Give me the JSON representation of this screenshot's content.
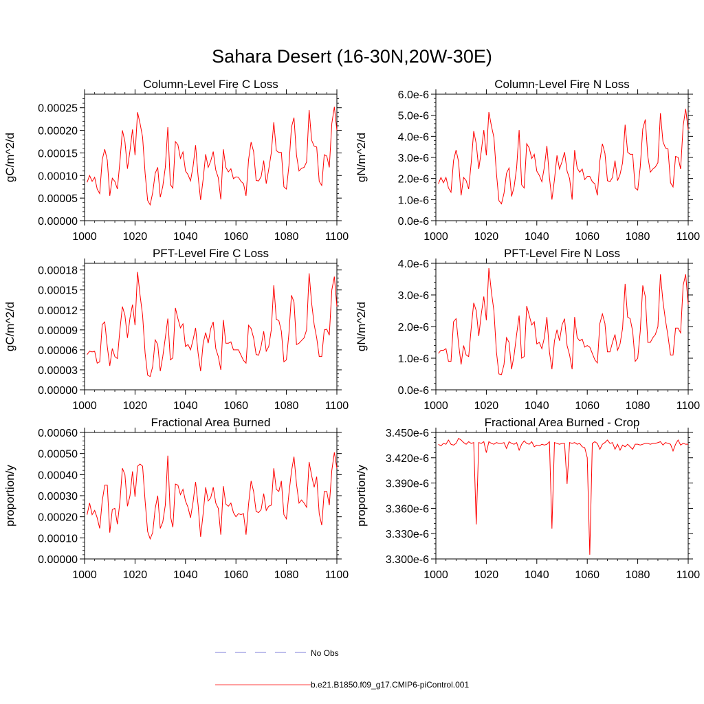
{
  "title": "Sahara Desert (16-30N,20W-30E)",
  "legend": [
    {
      "label": "No Obs",
      "color": "#5555cc",
      "style": "dashed"
    },
    {
      "label": "b.e21.B1850.f09_g17.CMIP6-piControl.001",
      "color": "#ff0000",
      "style": "solid"
    }
  ],
  "colors": {
    "series": "#ff0000",
    "axis": "#000000",
    "obs": "#5555cc"
  },
  "chart_data": [
    {
      "type": "line",
      "title": "Column-Level Fire C Loss",
      "ylabel": "gC/m^2/d",
      "xlim": [
        1000,
        1100
      ],
      "ylim": [
        0,
        0.00028
      ],
      "xticks": [
        1000,
        1020,
        1040,
        1060,
        1080,
        1100
      ],
      "yticks": [
        0,
        5e-05,
        0.0001,
        0.00015,
        0.0002,
        0.00025
      ],
      "ytick_labels": [
        "0.00000",
        "0.00005",
        "0.00010",
        "0.00015",
        "0.00020",
        "0.00025"
      ],
      "series": [
        {
          "name": "b.e21.B1850.f09_g17.CMIP6-piControl.001",
          "x_start": 1001,
          "values": [
            8.5e-05,
            0.0001,
            8.7e-05,
            9.6e-05,
            7e-05,
            6e-05,
            0.000135,
            0.000158,
            0.000134,
            5.5e-05,
            9.4e-05,
            8.7e-05,
            7e-05,
            0.00013,
            0.0002,
            0.000175,
            0.000115,
            0.000155,
            0.000202,
            0.000145,
            0.00024,
            0.000215,
            0.000185,
            0.000105,
            4.5e-05,
            3.5e-05,
            6.2e-05,
            0.000105,
            0.000118,
            5.2e-05,
            7.6e-05,
            0.000118,
            0.000207,
            8e-05,
            7.2e-05,
            0.000175,
            0.000168,
            0.000138,
            0.000152,
            0.00011,
            0.000102,
            8.8e-05,
            0.00012,
            0.000167,
            9.8e-05,
            4.6e-05,
            9.2e-05,
            0.000147,
            0.000118,
            0.000132,
            0.000153,
            0.000112,
            9.5e-05,
            4.7e-05,
            0.000158,
            0.000118,
            0.000108,
            0.000115,
            9.3e-05,
            9.7e-05,
            9.6e-05,
            8.7e-05,
            8.2e-05,
            5.5e-05,
            0.000135,
            0.000174,
            0.000153,
            8.9e-05,
            8.8e-05,
            9.8e-05,
            0.000133,
            8.2e-05,
            0.000114,
            0.00015,
            0.000218,
            0.000155,
            0.000151,
            0.000151,
            7.5e-05,
            7e-05,
            0.000122,
            0.000207,
            0.000228,
            0.000145,
            0.00011,
            0.000116,
            0.000118,
            0.00013,
            0.000245,
            0.000178,
            0.000165,
            0.000163,
            8.7e-05,
            7.8e-05,
            0.000146,
            0.000143,
            0.000118,
            0.000215,
            0.000252,
            0.0002
          ]
        }
      ]
    },
    {
      "type": "line",
      "title": "Column-Level Fire N Loss",
      "ylabel": "gN/m^2/d",
      "xlim": [
        1000,
        1100
      ],
      "ylim": [
        0,
        6e-06
      ],
      "xticks": [
        1000,
        1020,
        1040,
        1060,
        1080,
        1100
      ],
      "yticks": [
        0,
        1e-06,
        2e-06,
        3e-06,
        4e-06,
        5e-06,
        6e-06
      ],
      "ytick_labels": [
        "0.0e-6",
        "1.0e-6",
        "2.0e-6",
        "3.0e-6",
        "4.0e-6",
        "5.0e-6",
        "6.0e-6"
      ],
      "series": [
        {
          "name": "b.e21.B1850.f09_g17.CMIP6-piControl.001",
          "x_start": 1001,
          "values": [
            1.75e-06,
            2.05e-06,
            1.8e-06,
            2.05e-06,
            1.55e-06,
            1.35e-06,
            2.85e-06,
            3.35e-06,
            2.8e-06,
            1.2e-06,
            2.05e-06,
            1.9e-06,
            1.5e-06,
            2.75e-06,
            4.25e-06,
            3.65e-06,
            2.45e-06,
            3.3e-06,
            4.3e-06,
            3.1e-06,
            5.15e-06,
            4.5e-06,
            3.95e-06,
            2.25e-06,
            9.5e-07,
            8e-07,
            1.3e-06,
            2.25e-06,
            2.5e-06,
            1.15e-06,
            1.6e-06,
            2.5e-06,
            4.3e-06,
            1.7e-06,
            1.55e-06,
            3.65e-06,
            3.45e-06,
            2.95e-06,
            3.15e-06,
            2.35e-06,
            2.15e-06,
            1.85e-06,
            2.55e-06,
            3.55e-06,
            2.05e-06,
            1e-06,
            1.95e-06,
            3.1e-06,
            2.45e-06,
            2.8e-06,
            3.25e-06,
            2.35e-06,
            2e-06,
            1e-06,
            3.35e-06,
            2.5e-06,
            2.3e-06,
            2.45e-06,
            1.95e-06,
            2.1e-06,
            2.1e-06,
            1.85e-06,
            1.75e-06,
            1.2e-06,
            2.85e-06,
            3.65e-06,
            3.2e-06,
            1.9e-06,
            1.85e-06,
            2.05e-06,
            2.85e-06,
            1.9e-06,
            2.2e-06,
            2.75e-06,
            4.55e-06,
            3.25e-06,
            3.15e-06,
            3.15e-06,
            1.55e-06,
            1.45e-06,
            2.55e-06,
            4.35e-06,
            4.8e-06,
            3.05e-06,
            2.3e-06,
            2.45e-06,
            2.55e-06,
            2.75e-06,
            5.1e-06,
            3.75e-06,
            3.45e-06,
            3.4e-06,
            1.8e-06,
            1.6e-06,
            3.05e-06,
            3e-06,
            2.45e-06,
            4.5e-06,
            5.3e-06,
            4.3e-06
          ]
        }
      ]
    },
    {
      "type": "line",
      "title": "PFT-Level Fire C Loss",
      "ylabel": "gC/m^2/d",
      "xlim": [
        1000,
        1100
      ],
      "ylim": [
        0,
        0.00019
      ],
      "xticks": [
        1000,
        1020,
        1040,
        1060,
        1080,
        1100
      ],
      "yticks": [
        0,
        3e-05,
        6e-05,
        9e-05,
        0.00012,
        0.00015,
        0.00018
      ],
      "ytick_labels": [
        "0.00000",
        "0.00003",
        "0.00006",
        "0.00009",
        "0.00012",
        "0.00015",
        "0.00018"
      ],
      "series": [
        {
          "name": "b.e21.B1850.f09_g17.CMIP6-piControl.001",
          "x_start": 1001,
          "values": [
            5.3e-05,
            5.8e-05,
            5.7e-05,
            5.8e-05,
            4e-05,
            4.2e-05,
            9.8e-05,
            0.000102,
            6.5e-05,
            3.6e-05,
            6.2e-05,
            5e-05,
            4.7e-05,
            9e-05,
            0.000125,
            0.000112,
            7.8e-05,
            0.000108,
            0.000128,
            9.7e-05,
            0.000177,
            0.000142,
            0.000112,
            5.5e-05,
            2.2e-05,
            2e-05,
            3.5e-05,
            7.5e-05,
            6.8e-05,
            2.8e-05,
            5e-05,
            7.8e-05,
            0.000107,
            4.5e-05,
            4.8e-05,
            0.000123,
            0.000107,
            9.3e-05,
            9.9e-05,
            6.5e-05,
            6.8e-05,
            6e-05,
            7.5e-05,
            9.3e-05,
            5.5e-05,
            2.8e-05,
            7e-05,
            8.6e-05,
            7e-05,
            9.2e-05,
            0.000102,
            6.2e-05,
            5e-05,
            3e-05,
            0.000105,
            7e-05,
            7e-05,
            7.2e-05,
            6e-05,
            6e-05,
            6e-05,
            5.2e-05,
            4.4e-05,
            4e-05,
            9.7e-05,
            9.2e-05,
            7.8e-05,
            5.3e-05,
            5.2e-05,
            6.6e-05,
            8.8e-05,
            5.8e-05,
            6.5e-05,
            9e-05,
            0.000157,
            0.000106,
            0.000104,
            8.8e-05,
            4.2e-05,
            4.5e-05,
            8.5e-05,
            0.000142,
            0.000132,
            6.8e-05,
            7e-05,
            7.4e-05,
            7.8e-05,
            9e-05,
            0.000175,
            0.00013,
            9.8e-05,
            7.8e-05,
            5e-05,
            5e-05,
            9e-05,
            9.1e-05,
            8.2e-05,
            0.00015,
            0.00017,
            0.000125
          ]
        }
      ]
    },
    {
      "type": "line",
      "title": "PFT-Level Fire N Loss",
      "ylabel": "gN/m^2/d",
      "xlim": [
        1000,
        1100
      ],
      "ylim": [
        0,
        4e-06
      ],
      "xticks": [
        1000,
        1020,
        1040,
        1060,
        1080,
        1100
      ],
      "yticks": [
        0,
        1e-06,
        2e-06,
        3e-06,
        4e-06
      ],
      "ytick_labels": [
        "0.0e-6",
        "1.0e-6",
        "2.0e-6",
        "3.0e-6",
        "4.0e-6"
      ],
      "series": [
        {
          "name": "b.e21.B1850.f09_g17.CMIP6-piControl.001",
          "x_start": 1001,
          "values": [
            1.15e-06,
            1.25e-06,
            1.25e-06,
            1.3e-06,
            9e-07,
            9e-07,
            2.15e-06,
            2.25e-06,
            1.45e-06,
            8e-07,
            1.4e-06,
            1.1e-06,
            1.05e-06,
            1.95e-06,
            2.75e-06,
            2.5e-06,
            1.7e-06,
            2.4e-06,
            2.95e-06,
            2.2e-06,
            3.85e-06,
            3.1e-06,
            2.5e-06,
            1.2e-06,
            5e-07,
            4.8e-07,
            8e-07,
            1.65e-06,
            1.5e-06,
            6.5e-07,
            1.1e-06,
            1.75e-06,
            2.35e-06,
            1e-06,
            1.05e-06,
            2.65e-06,
            2.35e-06,
            2.05e-06,
            2.15e-06,
            1.45e-06,
            1.5e-06,
            1.3e-06,
            1.65e-06,
            2.3e-06,
            1.2e-06,
            6.5e-07,
            1.55e-06,
            1.9e-06,
            1.55e-06,
            2.05e-06,
            2.25e-06,
            1.4e-06,
            1.1e-06,
            6.5e-07,
            2.3e-06,
            1.65e-06,
            1.55e-06,
            1.6e-06,
            1.35e-06,
            1.4e-06,
            1.35e-06,
            1.15e-06,
            9.5e-07,
            8.5e-07,
            2.1e-06,
            2.4e-06,
            2.1e-06,
            1.2e-06,
            1.2e-06,
            1.5e-06,
            1.75e-06,
            1.25e-06,
            1.45e-06,
            1.95e-06,
            3.35e-06,
            2.3e-06,
            2.25e-06,
            1.85e-06,
            9e-07,
            1e-06,
            1.85e-06,
            3.3e-06,
            2.95e-06,
            1.5e-06,
            1.5e-06,
            1.65e-06,
            1.75e-06,
            2e-06,
            3.65e-06,
            2.8e-06,
            2.2e-06,
            1.7e-06,
            1.1e-06,
            1.1e-06,
            1.95e-06,
            1.95e-06,
            1.8e-06,
            3.3e-06,
            3.65e-06,
            2.7e-06
          ]
        }
      ]
    },
    {
      "type": "line",
      "title": "Fractional Area Burned",
      "ylabel": "proportion/y",
      "xlim": [
        1000,
        1100
      ],
      "ylim": [
        0,
        0.0006
      ],
      "xticks": [
        1000,
        1020,
        1040,
        1060,
        1080,
        1100
      ],
      "yticks": [
        0,
        0.0001,
        0.0002,
        0.0003,
        0.0004,
        0.0005,
        0.0006
      ],
      "ytick_labels": [
        "0.00000",
        "0.00010",
        "0.00020",
        "0.00030",
        "0.00040",
        "0.00050",
        "0.00060"
      ],
      "series": [
        {
          "name": "b.e21.B1850.f09_g17.CMIP6-piControl.001",
          "x_start": 1001,
          "values": [
            0.00021,
            0.000265,
            0.00021,
            0.00023,
            0.000195,
            0.000145,
            0.000275,
            0.00035,
            0.00035,
            0.000125,
            0.000235,
            0.00024,
            0.000165,
            0.00027,
            0.00043,
            0.0004,
            0.00025,
            0.0003,
            0.000415,
            0.000295,
            0.00044,
            0.00045,
            0.00044,
            0.000275,
            0.00013,
            9.5e-05,
            0.000125,
            0.00024,
            0.0003,
            0.000145,
            0.000175,
            0.000255,
            0.00049,
            0.000205,
            0.00015,
            0.000355,
            0.00035,
            0.000305,
            0.00033,
            0.000275,
            0.000245,
            0.000195,
            0.00027,
            0.000365,
            0.000255,
            0.000105,
            0.000215,
            0.00034,
            0.000275,
            0.00029,
            0.00034,
            0.000265,
            0.00024,
            0.000115,
            0.000345,
            0.00026,
            0.00025,
            0.000265,
            0.00022,
            0.0002,
            0.000215,
            0.00021,
            0.000215,
            0.000115,
            0.00026,
            0.00037,
            0.00032,
            0.000225,
            0.00022,
            0.000235,
            0.00031,
            0.00023,
            0.00025,
            0.000255,
            0.00043,
            0.00033,
            0.00032,
            0.00037,
            0.00021,
            0.00019,
            0.00031,
            0.000415,
            0.000485,
            0.000355,
            0.000265,
            0.00028,
            0.000265,
            0.000245,
            0.00046,
            0.000395,
            0.00034,
            0.00039,
            0.000215,
            0.00016,
            0.00032,
            0.00032,
            0.000255,
            0.00042,
            0.000505,
            0.00043
          ]
        }
      ]
    },
    {
      "type": "line",
      "title": "Fractional Area Burned - Crop",
      "ylabel": "proportion/y",
      "xlim": [
        1000,
        1100
      ],
      "ylim": [
        3.3e-06,
        3.45e-06
      ],
      "xticks": [
        1000,
        1020,
        1040,
        1060,
        1080,
        1100
      ],
      "yticks": [
        3.3e-06,
        3.33e-06,
        3.36e-06,
        3.39e-06,
        3.42e-06,
        3.45e-06
      ],
      "ytick_labels": [
        "3.300e-6",
        "3.330e-6",
        "3.360e-6",
        "3.390e-6",
        "3.420e-6",
        "3.450e-6"
      ],
      "series": [
        {
          "name": "b.e21.B1850.f09_g17.CMIP6-piControl.001",
          "x_start": 1001,
          "values": [
            3.436e-06,
            3.434e-06,
            3.437e-06,
            3.436e-06,
            3.441e-06,
            3.436e-06,
            3.435e-06,
            3.437e-06,
            3.443e-06,
            3.441e-06,
            3.438e-06,
            3.436e-06,
            3.439e-06,
            3.437e-06,
            3.438e-06,
            3.341e-06,
            3.438e-06,
            3.437e-06,
            3.439e-06,
            3.426e-06,
            3.439e-06,
            3.437e-06,
            3.436e-06,
            3.438e-06,
            3.437e-06,
            3.437e-06,
            3.438e-06,
            3.431e-06,
            3.439e-06,
            3.437e-06,
            3.436e-06,
            3.438e-06,
            3.429e-06,
            3.436e-06,
            3.44e-06,
            3.437e-06,
            3.436e-06,
            3.439e-06,
            3.433e-06,
            3.435e-06,
            3.434e-06,
            3.436e-06,
            3.435e-06,
            3.436e-06,
            3.439e-06,
            3.336e-06,
            3.438e-06,
            3.437e-06,
            3.436e-06,
            3.437e-06,
            3.437e-06,
            3.389e-06,
            3.438e-06,
            3.437e-06,
            3.438e-06,
            3.436e-06,
            3.437e-06,
            3.433e-06,
            3.432e-06,
            3.42e-06,
            3.305e-06,
            3.437e-06,
            3.439e-06,
            3.437e-06,
            3.43e-06,
            3.436e-06,
            3.438e-06,
            3.441e-06,
            3.437e-06,
            3.438e-06,
            3.43e-06,
            3.436e-06,
            3.429e-06,
            3.435e-06,
            3.433e-06,
            3.436e-06,
            3.433e-06,
            3.43e-06,
            3.436e-06,
            3.436e-06,
            3.435e-06,
            3.436e-06,
            3.437e-06,
            3.437e-06,
            3.436e-06,
            3.437e-06,
            3.437e-06,
            3.438e-06,
            3.439e-06,
            3.435e-06,
            3.438e-06,
            3.437e-06,
            3.436e-06,
            3.428e-06,
            3.436e-06,
            3.441e-06,
            3.435e-06,
            3.437e-06,
            3.436e-06,
            3.436e-06
          ]
        }
      ]
    }
  ]
}
